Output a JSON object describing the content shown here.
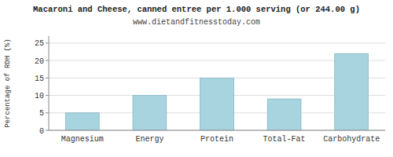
{
  "chart_data": {
    "type": "bar",
    "title": "Macaroni and Cheese, canned entree per 1.000 serving (or 244.00 g)",
    "subtitle": "www.dietandfitnesstoday.com",
    "ylabel": "Percentage of RDH (%)",
    "categories": [
      "Magnesium",
      "Energy",
      "Protein",
      "Total-Fat",
      "Carbohydrate"
    ],
    "values": [
      5,
      10,
      15,
      9,
      22
    ],
    "color": "#a8d4e0",
    "ylim": [
      0,
      27
    ],
    "yticks": [
      0,
      5,
      10,
      15,
      20,
      25
    ],
    "grid": true
  }
}
